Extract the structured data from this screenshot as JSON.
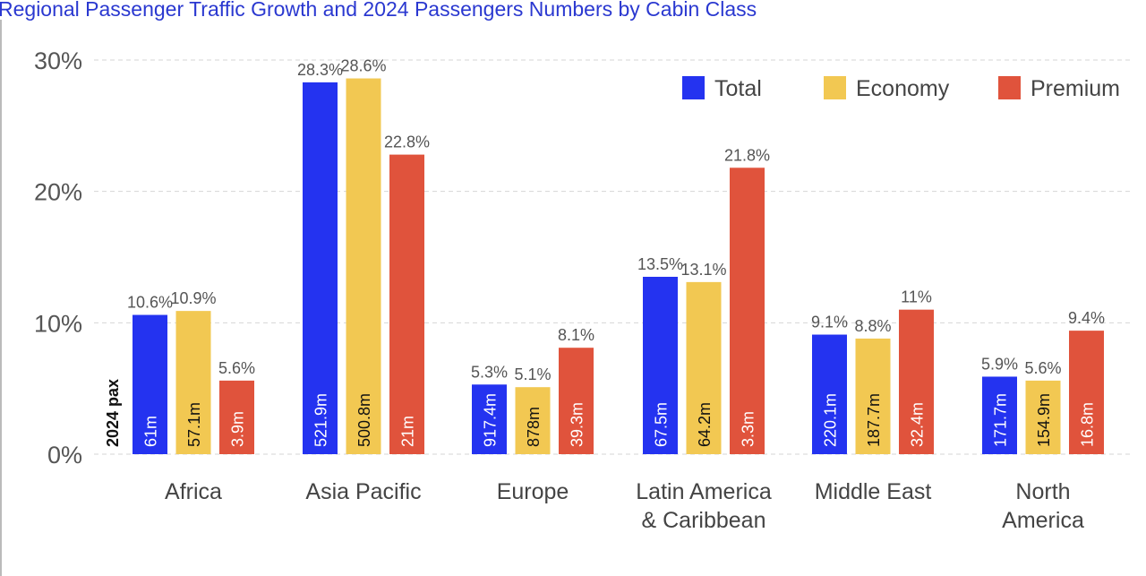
{
  "chart_data": {
    "type": "bar",
    "title": "Regional Passenger Traffic Growth and 2024 Passengers Numbers by Cabin Class",
    "categories": [
      [
        "Africa"
      ],
      [
        "Asia Pacific"
      ],
      [
        "Europe"
      ],
      [
        "Latin America",
        "& Caribbean"
      ],
      [
        "Middle East"
      ],
      [
        "North",
        "America"
      ]
    ],
    "ylim": [
      0,
      30
    ],
    "yticks": [
      0,
      10,
      20,
      30
    ],
    "ytick_labels": [
      "0%",
      "10%",
      "20%",
      "30%"
    ],
    "grid": true,
    "legend_position": "top-right",
    "inner_label_title": "2024 pax",
    "series": [
      {
        "name": "Total",
        "color": "#2433f0",
        "values": [
          10.6,
          28.3,
          5.3,
          13.5,
          9.1,
          5.9
        ],
        "value_labels": [
          "10.6%",
          "28.3%",
          "5.3%",
          "13.5%",
          "9.1%",
          "5.9%"
        ],
        "pax": [
          "61m",
          "521.9m",
          "917.4m",
          "67.5m",
          "220.1m",
          "171.7m"
        ],
        "pax_text_color": "#ffffff"
      },
      {
        "name": "Economy",
        "color": "#f2c852",
        "values": [
          10.9,
          28.6,
          5.1,
          13.1,
          8.8,
          5.6
        ],
        "value_labels": [
          "10.9%",
          "28.6%",
          "5.1%",
          "13.1%",
          "8.8%",
          "5.6%"
        ],
        "pax": [
          "57.1m",
          "500.8m",
          "878m",
          "64.2m",
          "187.7m",
          "154.9m"
        ],
        "pax_text_color": "#111111"
      },
      {
        "name": "Premium",
        "color": "#e0533c",
        "values": [
          5.6,
          22.8,
          8.1,
          21.8,
          11,
          9.4
        ],
        "value_labels": [
          "5.6%",
          "22.8%",
          "8.1%",
          "21.8%",
          "11%",
          "9.4%"
        ],
        "pax": [
          "3.9m",
          "21m",
          "39.3m",
          "3.3m",
          "32.4m",
          "16.8m"
        ],
        "pax_text_color": "#ffffff"
      }
    ]
  }
}
